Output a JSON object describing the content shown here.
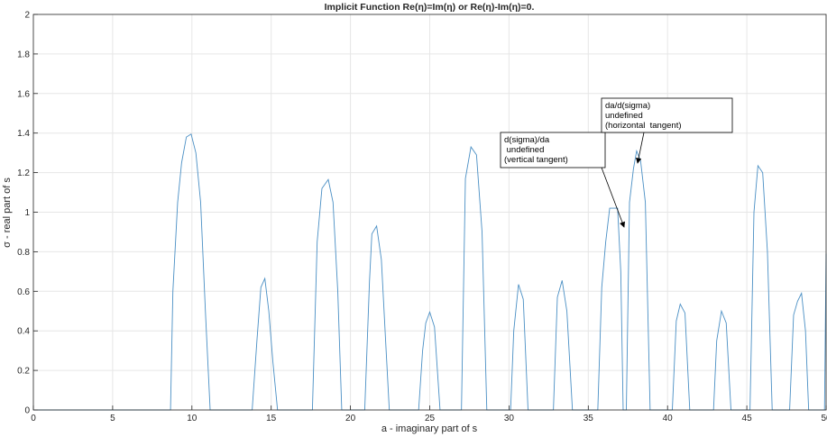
{
  "chart_data": {
    "type": "line",
    "title": "Implicit Function Re(η)=Im(η) or Re(η)-Im(η)=0.",
    "xlabel": "a - imaginary part of s",
    "ylabel": "σ - real part of s",
    "xlim": [
      0,
      50
    ],
    "ylim": [
      0,
      2
    ],
    "xticks": [
      0,
      5,
      10,
      15,
      20,
      25,
      30,
      35,
      40,
      45,
      50
    ],
    "yticks": [
      0,
      0.2,
      0.4,
      0.6,
      0.8,
      1,
      1.2,
      1.4,
      1.6,
      1.8,
      2
    ],
    "grid": true,
    "series": [
      {
        "color": "#4a8fc4",
        "x": [
          0,
          8.65,
          8.8,
          9.1,
          9.35,
          9.65,
          9.95,
          10.25,
          10.55,
          10.85,
          11.15,
          13.8,
          14.1,
          14.35,
          14.6,
          14.85,
          15.1,
          15.4,
          17.6,
          17.9,
          18.2,
          18.6,
          18.9,
          19.2,
          19.45,
          20.9,
          21.2,
          21.35,
          21.65,
          21.95,
          22.25,
          22.45,
          24.3,
          24.55,
          24.75,
          25.0,
          25.3,
          25.65,
          27.0,
          27.25,
          27.6,
          27.95,
          28.3,
          28.6,
          30.1,
          30.3,
          30.6,
          30.9,
          31.2,
          32.8,
          33.05,
          33.35,
          33.65,
          34.0,
          35.6,
          35.85,
          36.1,
          36.35,
          36.85,
          37.05,
          37.2,
          37.4,
          37.6,
          37.85,
          38.05,
          38.3,
          38.6,
          38.9,
          40.3,
          40.55,
          40.8,
          41.1,
          41.4,
          42.9,
          43.1,
          43.4,
          43.7,
          44.0,
          45.2,
          45.45,
          45.7,
          46.0,
          46.3,
          46.6,
          47.7,
          47.95,
          48.2,
          48.45,
          48.7,
          48.9,
          49.9,
          50
        ],
        "values": [
          0,
          0,
          0.6,
          1.05,
          1.25,
          1.38,
          1.395,
          1.3,
          1.05,
          0.5,
          0,
          0,
          0.35,
          0.62,
          0.665,
          0.5,
          0.25,
          0,
          0,
          0.85,
          1.12,
          1.165,
          1.05,
          0.6,
          0,
          0,
          0.65,
          0.89,
          0.93,
          0.76,
          0.3,
          0,
          0,
          0.3,
          0.44,
          0.495,
          0.42,
          0,
          0,
          1.17,
          1.33,
          1.29,
          0.9,
          0,
          0,
          0.4,
          0.635,
          0.56,
          0,
          0,
          0.57,
          0.655,
          0.5,
          0,
          0,
          0.62,
          0.85,
          1.02,
          1.02,
          0.7,
          0,
          0,
          1.05,
          1.22,
          1.31,
          1.26,
          1.05,
          0,
          0,
          0.45,
          0.535,
          0.49,
          0,
          0,
          0.35,
          0.5,
          0.44,
          0,
          0,
          1.0,
          1.235,
          1.2,
          0.8,
          0,
          0,
          0.48,
          0.55,
          0.59,
          0.4,
          0,
          0,
          0.79
        ]
      }
    ],
    "annotations": [
      {
        "lines": [
          "d(sigma)/da",
          " undefined",
          "(vertical tangent)"
        ]
      },
      {
        "lines": [
          "da/d(sigma)",
          "undefined",
          "(horizontal  tangent)"
        ]
      }
    ]
  }
}
